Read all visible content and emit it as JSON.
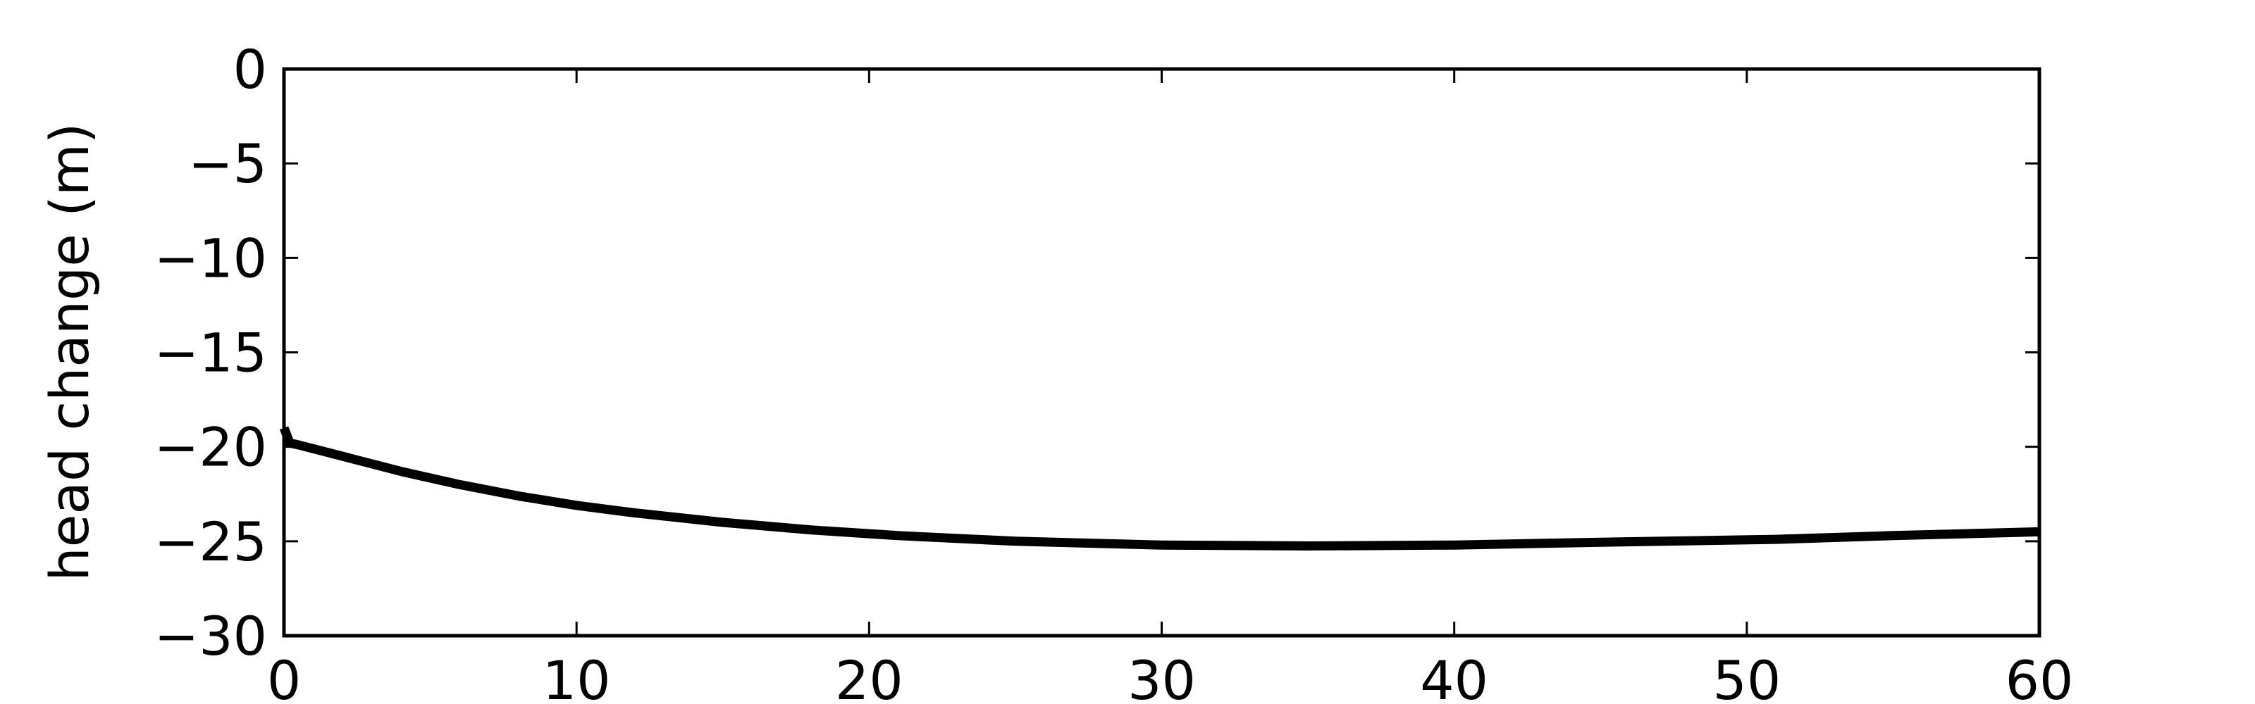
{
  "chart_data": {
    "type": "line",
    "title": "",
    "xlabel": "",
    "ylabel": "head change (m)",
    "xlim": [
      0,
      60
    ],
    "ylim": [
      -30,
      0
    ],
    "grid": false,
    "x_ticks": [
      0,
      10,
      20,
      30,
      40,
      50,
      60
    ],
    "x_tick_labels": [
      "0",
      "10",
      "20",
      "30",
      "40",
      "50",
      "60"
    ],
    "y_ticks": [
      0,
      -5,
      -10,
      -15,
      -20,
      -25,
      -30
    ],
    "y_tick_labels": [
      "0",
      "−5",
      "−10",
      "−15",
      "−20",
      "−25",
      "−30"
    ],
    "series": [
      {
        "color": "#000000",
        "x": [
          0,
          0.2,
          0.5,
          2,
          4,
          6,
          8,
          10,
          12,
          15,
          18,
          21,
          25,
          30,
          35,
          40,
          45,
          51,
          55,
          60
        ],
        "y": [
          -19.0,
          -19.8,
          -19.9,
          -20.5,
          -21.3,
          -22.0,
          -22.6,
          -23.1,
          -23.5,
          -24.0,
          -24.4,
          -24.7,
          -25.0,
          -25.2,
          -25.25,
          -25.2,
          -25.05,
          -24.9,
          -24.7,
          -24.5
        ]
      }
    ]
  }
}
